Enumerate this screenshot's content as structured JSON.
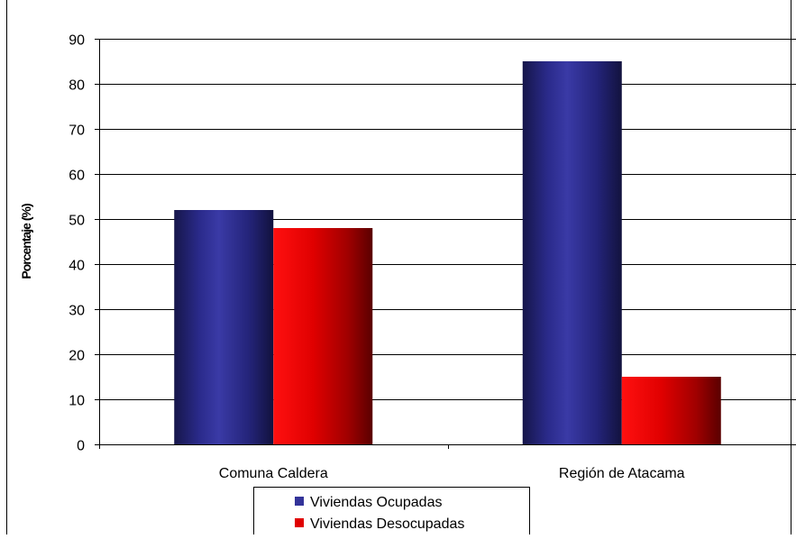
{
  "chart_data": {
    "type": "bar",
    "title": "",
    "xlabel": "",
    "ylabel": "Porcentaje (%)",
    "ylim": [
      0,
      90
    ],
    "yticks": [
      0,
      10,
      20,
      30,
      40,
      50,
      60,
      70,
      80,
      90
    ],
    "grid": true,
    "legend_position": "bottom",
    "categories": [
      "Comuna Caldera",
      "Región de Atacama"
    ],
    "series": [
      {
        "name": "Viviendas Ocupadas",
        "values": [
          52,
          85
        ],
        "color": "#333399"
      },
      {
        "name": "Viviendas Desocupadas",
        "values": [
          48,
          15
        ],
        "color": "#e00000"
      }
    ]
  }
}
